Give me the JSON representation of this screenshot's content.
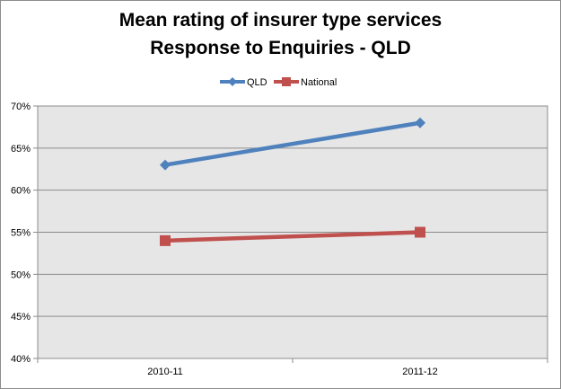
{
  "chart_data": {
    "type": "line",
    "title": "Mean rating of insurer type services",
    "subtitle": "Response to Enquiries - QLD",
    "xlabel": "",
    "ylabel": "",
    "categories": [
      "2010-11",
      "2011-12"
    ],
    "ylim": [
      40,
      70
    ],
    "yticks": [
      "40%",
      "45%",
      "50%",
      "55%",
      "60%",
      "65%",
      "70%"
    ],
    "ytick_values": [
      40,
      45,
      50,
      55,
      60,
      65,
      70
    ],
    "grid": true,
    "legend_position": "top",
    "series": [
      {
        "name": "QLD",
        "values": [
          63,
          68
        ],
        "color": "#4f81bd",
        "marker": "diamond"
      },
      {
        "name": "National",
        "values": [
          54,
          55
        ],
        "color": "#c0504d",
        "marker": "square"
      }
    ],
    "plot_background": "#e6e6e6",
    "grid_color": "#8c8c8c"
  }
}
